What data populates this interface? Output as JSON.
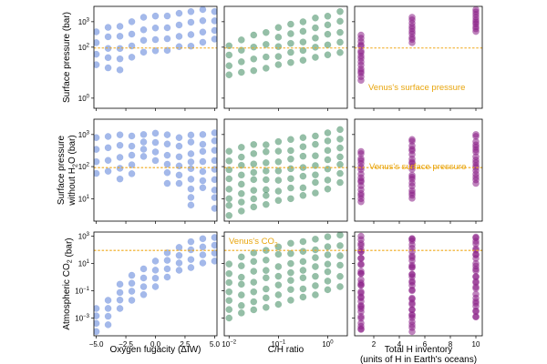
{
  "colors": {
    "blue": "#5a7fd8",
    "green": "#3e8b5f",
    "purple": "#8a1f86",
    "reference": "#f0a818",
    "axis": "#000000"
  },
  "labels": {
    "row_ylabels": [
      [
        "Surface pressure (bar)"
      ],
      [
        "Surface pressure",
        "without H2O (bar)"
      ],
      [
        "Atmospheric CO2 (bar)"
      ]
    ],
    "col_xlabels": [
      [
        "Oxygen fugacity (ΔIW)"
      ],
      [
        "C/H ratio"
      ],
      [
        "Total H inventory",
        "(units of H in Earth's oceans)"
      ]
    ],
    "venus_pressure": "Venus's surface pressure",
    "venus_co2": "Venus's CO2"
  },
  "chart_data": {
    "type": "scatter",
    "layout": "3x3 grid",
    "columns": [
      {
        "xlabel": "Oxygen fugacity (ΔIW)",
        "xscale": "linear",
        "xlim": [
          -5.2,
          5.2
        ],
        "xticks": [
          -5.0,
          -2.5,
          0.0,
          2.5,
          5.0
        ],
        "xticklabels": [
          "−5.0",
          "−2.5",
          "0.0",
          "2.5",
          "5.0"
        ],
        "color": "blue",
        "x": [
          -5,
          -4,
          -3,
          -2,
          -1,
          0,
          1,
          2,
          3,
          4,
          5
        ]
      },
      {
        "xlabel": "C/H ratio",
        "xscale": "log",
        "xlim": [
          0.008,
          2.5
        ],
        "xticks": [
          0.01,
          0.1,
          1
        ],
        "xticklabels": [
          "10^-2",
          "10^-1",
          "10^0"
        ],
        "color": "green",
        "x": [
          0.01,
          0.0178,
          0.0316,
          0.0562,
          0.1,
          0.178,
          0.316,
          0.562,
          1.0,
          1.78
        ]
      },
      {
        "xlabel": "Total H inventory (units of H in Earth's oceans)",
        "xscale": "linear",
        "xlim": [
          0.5,
          10.5
        ],
        "xticks": [
          2,
          4,
          6,
          8,
          10
        ],
        "xticklabels": [
          "2",
          "4",
          "6",
          "8",
          "10"
        ],
        "color": "purple",
        "x": [
          1,
          5,
          10
        ]
      }
    ],
    "rows": [
      {
        "ylabel": "Surface pressure (bar)",
        "yscale": "log",
        "ylim": [
          0.4,
          4000
        ],
        "yticks": [
          1,
          100,
          1000
        ],
        "yticklabels": [
          "10^0",
          "10^2",
          "10^3"
        ],
        "reference": {
          "value": 93,
          "label": "Venus's surface pressure"
        },
        "ranges": [
          [
            [
              20,
              400
            ],
            [
              15,
              600
            ],
            [
              12,
              700
            ],
            [
              40,
              1000
            ],
            [
              60,
              1500
            ],
            [
              70,
              1700
            ],
            [
              70,
              1700
            ],
            [
              100,
              2200
            ],
            [
              110,
              2500
            ],
            [
              150,
              3000
            ],
            [
              200,
              2500
            ]
          ],
          [
            [
              8,
              120
            ],
            [
              10,
              200
            ],
            [
              12,
              300
            ],
            [
              15,
              400
            ],
            [
              20,
              600
            ],
            [
              25,
              800
            ],
            [
              30,
              1000
            ],
            [
              40,
              1400
            ],
            [
              50,
              1800
            ],
            [
              60,
              2500
            ]
          ],
          [
            [
              5,
              300
            ],
            [
              150,
              1500
            ],
            [
              400,
              3000
            ]
          ]
        ]
      },
      {
        "ylabel": "Surface pressure without H2O (bar)",
        "yscale": "log",
        "ylim": [
          2,
          3000
        ],
        "yticks": [
          10,
          100,
          1000
        ],
        "yticklabels": [
          "10^1",
          "10^2",
          "10^3"
        ],
        "reference": {
          "value": 93,
          "label": "Venus's surface pressure"
        },
        "ranges": [
          [
            [
              60,
              800
            ],
            [
              70,
              900
            ],
            [
              40,
              1000
            ],
            [
              60,
              900
            ],
            [
              200,
              1000
            ],
            [
              150,
              1100
            ],
            [
              30,
              1000
            ],
            [
              30,
              800
            ],
            [
              6,
              1000
            ],
            [
              20,
              1000
            ],
            [
              5,
              1200
            ]
          ],
          [
            [
              3,
              300
            ],
            [
              4,
              400
            ],
            [
              5,
              500
            ],
            [
              6,
              500
            ],
            [
              8,
              600
            ],
            [
              10,
              700
            ],
            [
              12,
              800
            ],
            [
              15,
              900
            ],
            [
              20,
              1200
            ],
            [
              30,
              1500
            ]
          ],
          [
            [
              8,
              300
            ],
            [
              10,
              700
            ],
            [
              30,
              1000
            ]
          ]
        ]
      },
      {
        "ylabel": "Atmospheric CO2 (bar)",
        "yscale": "log",
        "ylim": [
          5e-05,
          2000
        ],
        "yticks": [
          0.001,
          0.1,
          10,
          1000
        ],
        "yticklabels": [
          "10^-3",
          "10^-1",
          "10^1",
          "10^3"
        ],
        "reference": {
          "value": 90,
          "label": "Venus's CO2"
        },
        "ranges": [
          [
            [
              0.0001,
              0.005
            ],
            [
              0.0003,
              0.02
            ],
            [
              0.005,
              0.3
            ],
            [
              0.02,
              1.5
            ],
            [
              0.05,
              4
            ],
            [
              0.2,
              15
            ],
            [
              1,
              60
            ],
            [
              3,
              150
            ],
            [
              5,
              400
            ],
            [
              10,
              700
            ],
            [
              15,
              800
            ]
          ],
          [
            [
              0.001,
              10
            ],
            [
              0.002,
              30
            ],
            [
              0.004,
              60
            ],
            [
              0.006,
              100
            ],
            [
              0.01,
              200
            ],
            [
              0.02,
              300
            ],
            [
              0.03,
              400
            ],
            [
              0.05,
              600
            ],
            [
              0.1,
              900
            ],
            [
              0.2,
              1200
            ]
          ],
          [
            [
              0.0001,
              1000
            ],
            [
              0.0001,
              1000
            ],
            [
              0.001,
              1200
            ]
          ]
        ]
      }
    ]
  }
}
